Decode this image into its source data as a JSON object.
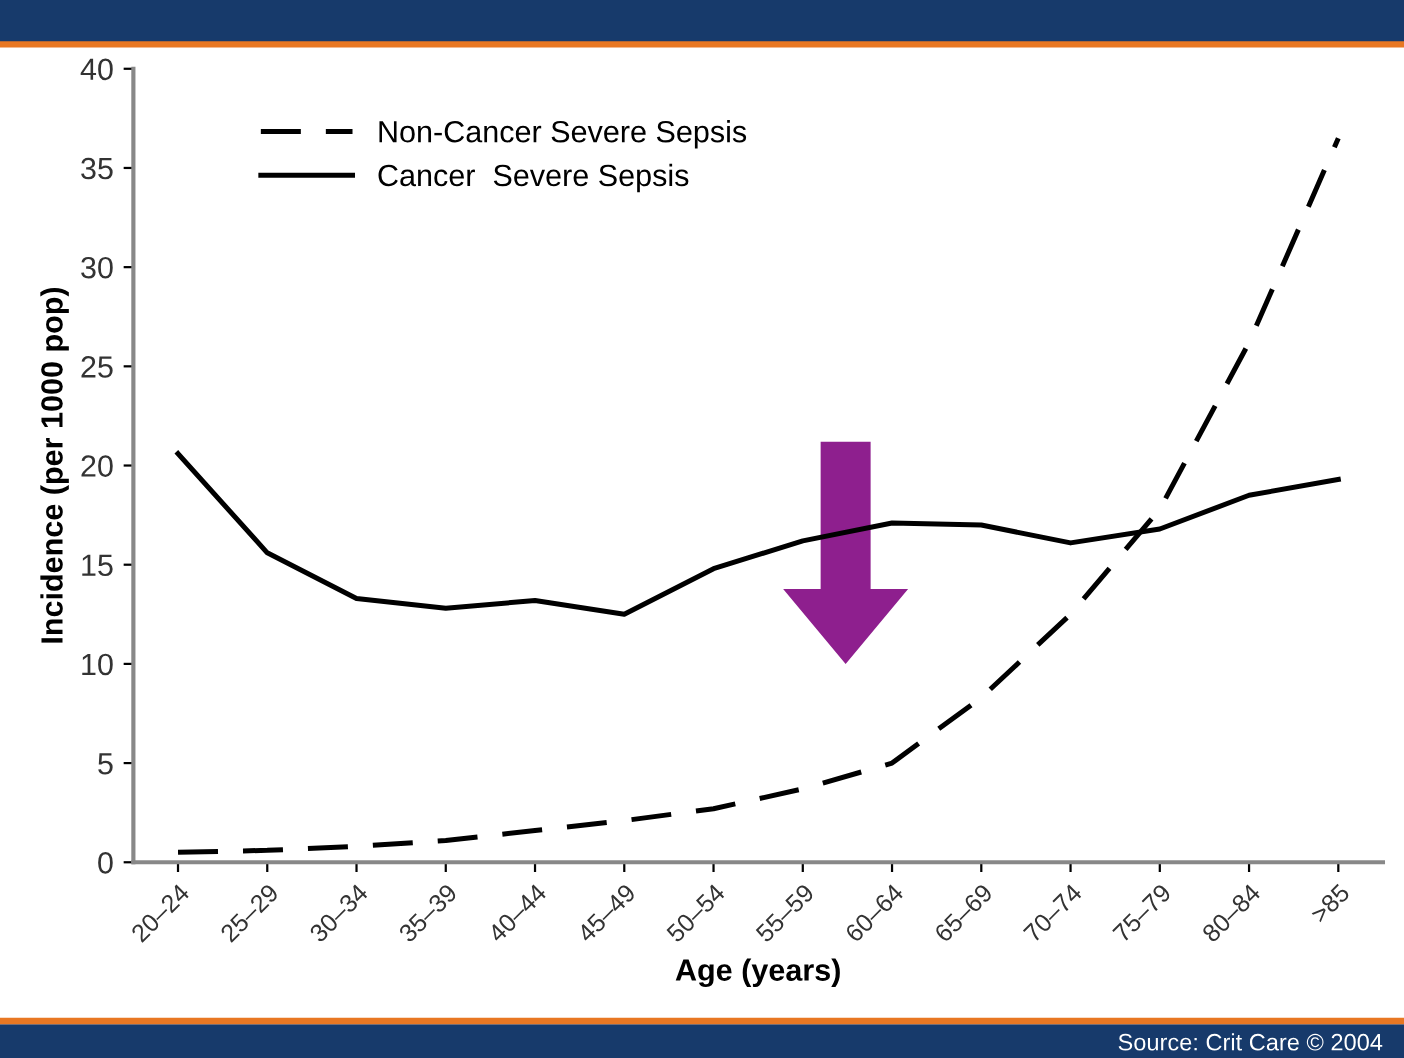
{
  "chart_data": {
    "type": "line",
    "xlabel": "Age (years)",
    "ylabel": "Incidence (per 1000 pop)",
    "categories": [
      "20–24",
      "25–29",
      "30–34",
      "35–39",
      "40–44",
      "45–49",
      "50–54",
      "55–59",
      "60–64",
      "65–69",
      "70–74",
      "75–79",
      "80–84",
      ">85"
    ],
    "series": [
      {
        "name": "Non-Cancer Severe Sepsis",
        "color": "#000000",
        "line_style": "dashed",
        "values": [
          0.5,
          0.6,
          0.8,
          1.1,
          1.6,
          2.1,
          2.7,
          3.7,
          5.0,
          8.3,
          12.5,
          17.8,
          26.2,
          36.5
        ]
      },
      {
        "name": "Cancer  Severe Sepsis",
        "color": "#000000",
        "line_style": "solid",
        "values": [
          20.6,
          15.6,
          13.3,
          12.8,
          13.2,
          12.5,
          14.8,
          16.2,
          17.1,
          17.0,
          16.1,
          16.8,
          18.5,
          19.3
        ]
      }
    ],
    "ylim": [
      0,
      40
    ],
    "yticks": [
      0,
      5,
      10,
      15,
      20,
      25,
      30,
      35,
      40
    ],
    "grid": false,
    "legend": "top left",
    "marker": "none",
    "annotations": [
      "Source: Crit Care © 2004"
    ]
  }
}
